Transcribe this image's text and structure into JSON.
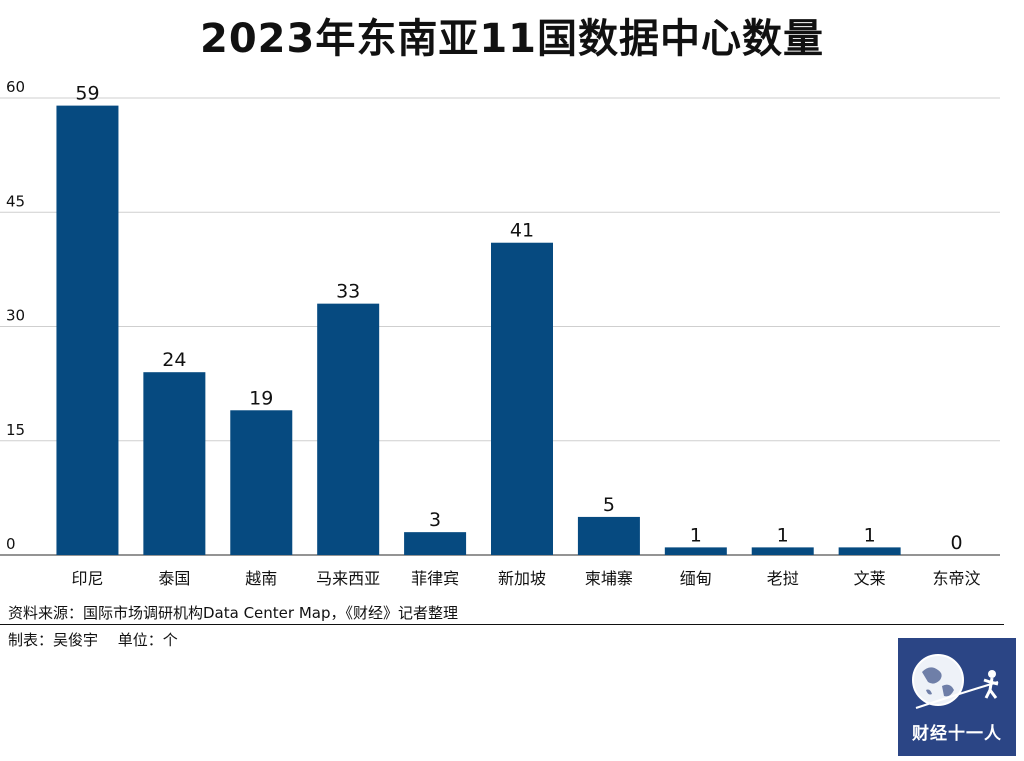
{
  "title": "2023年东南亚11国数据中心数量",
  "chart_data": {
    "type": "bar",
    "title": "2023年东南亚11国数据中心数量",
    "categories": [
      "印尼",
      "泰国",
      "越南",
      "马来西亚",
      "菲律宾",
      "新加坡",
      "柬埔寨",
      "缅甸",
      "老挝",
      "文莱",
      "东帝汶"
    ],
    "values": [
      59,
      24,
      19,
      33,
      3,
      41,
      5,
      1,
      1,
      1,
      0
    ],
    "yticks": [
      0,
      15,
      30,
      45,
      60
    ],
    "ylim": [
      0,
      60
    ],
    "xlabel": "",
    "ylabel": "",
    "grid": true,
    "data_labels": true,
    "bar_color": "#064a80"
  },
  "footer": {
    "source": "资料来源：国际市场调研机构Data Center Map，《财经》记者整理",
    "credit": "制表：吴俊宇　 单位：个"
  },
  "logo": {
    "text": "财经十一人",
    "background": "#2b4585"
  }
}
